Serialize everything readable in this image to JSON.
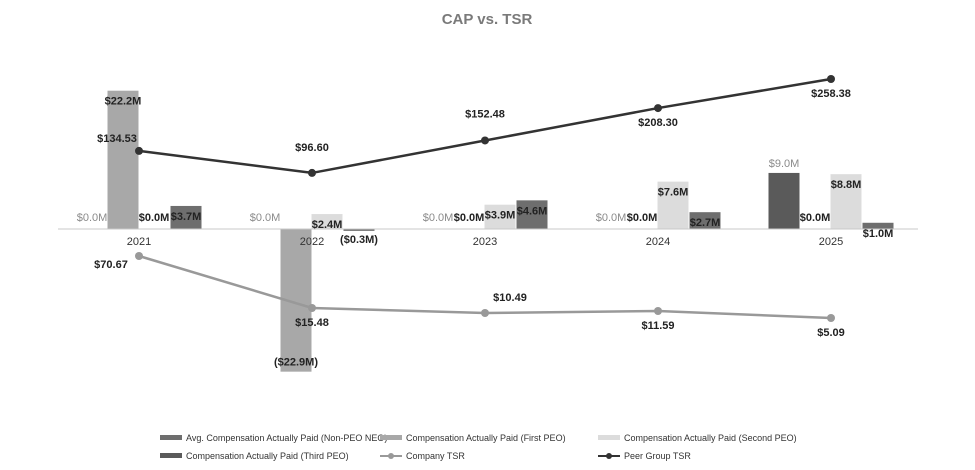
{
  "chart_data": {
    "type": "bar",
    "title": "CAP vs. TSR",
    "categories": [
      "2021",
      "2022",
      "2023",
      "2024",
      "2025"
    ],
    "bar_series": [
      {
        "name": "Avg. Compensation Actually Paid (Non-PEO NEO)",
        "color": "#6e6e6e",
        "values": [
          3.7,
          -0.3,
          4.6,
          2.7,
          1.0
        ],
        "labels": [
          "$3.7M",
          "($0.3M)",
          "$4.6M",
          "$2.7M",
          "$1.0M"
        ]
      },
      {
        "name": "Compensation Actually Paid (First PEO)",
        "color": "#a8a8a8",
        "values": [
          22.2,
          -22.9,
          0.0,
          0.0,
          0.0
        ],
        "labels": [
          "$22.2M",
          "($22.9M)",
          "$0.0M",
          "$0.0M",
          "$0.0M"
        ]
      },
      {
        "name": "Compensation Actually Paid (Second PEO)",
        "color": "#dcdcdc",
        "values": [
          0.0,
          2.4,
          3.9,
          7.6,
          8.8
        ],
        "labels": [
          "$0.0M",
          "$2.4M",
          "$3.9M",
          "$7.6M",
          "$8.8M"
        ]
      },
      {
        "name": "Compensation Actually Paid (Third PEO)",
        "color": "#5a5a5a",
        "values": [
          0.0,
          0.0,
          0.0,
          0.0,
          9.0
        ],
        "labels": [
          "$0.0M",
          "$0.0M",
          "$0.0M",
          "$0.0M",
          "$9.0M"
        ]
      }
    ],
    "line_series": [
      {
        "name": "Company TSR",
        "color": "#999999",
        "values": [
          70.67,
          15.48,
          10.49,
          11.59,
          5.09
        ],
        "labels": [
          "$70.67",
          "$15.48",
          "$10.49",
          "$11.59",
          "$5.09"
        ]
      },
      {
        "name": "Peer Group TSR",
        "color": "#333333",
        "values": [
          134.53,
          96.6,
          152.48,
          208.3,
          258.38
        ],
        "labels": [
          "$134.53",
          "$96.60",
          "$152.48",
          "$208.30",
          "$258.38"
        ]
      }
    ],
    "legend": [
      "Avg. Compensation Actually Paid (Non-PEO NEO)",
      "Compensation Actually Paid (First PEO)",
      "Compensation Actually Paid (Second PEO)",
      "Compensation Actually Paid (Third PEO)",
      "Company TSR",
      "Peer Group TSR"
    ],
    "legend_position": "bottom",
    "grid": false
  }
}
